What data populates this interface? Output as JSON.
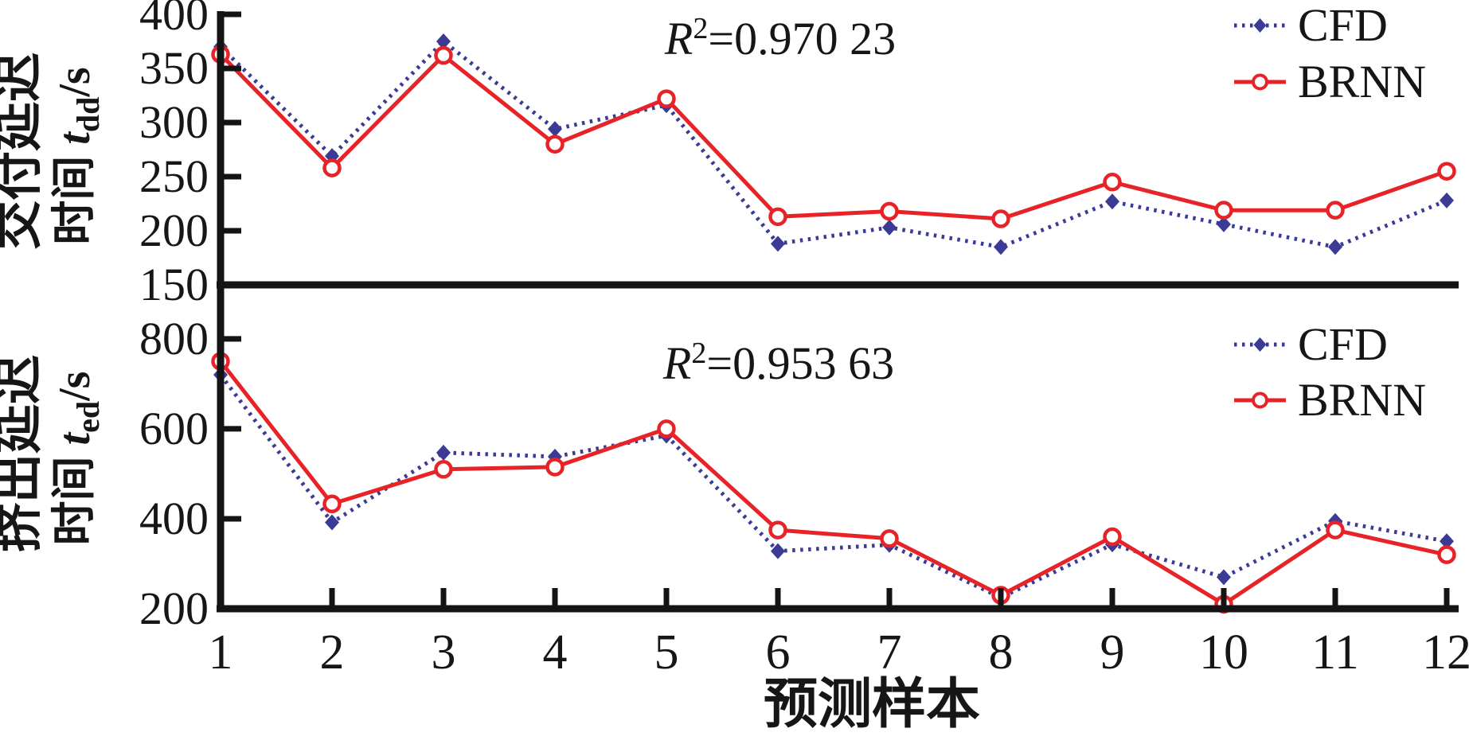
{
  "figure": {
    "xlabel": "预测样本",
    "x_categories": [
      "1",
      "2",
      "3",
      "4",
      "5",
      "6",
      "7",
      "8",
      "9",
      "10",
      "11",
      "12"
    ],
    "colors": {
      "cfd_blue": "#3B3B95",
      "brnn_red": "#E82328",
      "axis_black": "#141414"
    }
  },
  "chart_data": [
    {
      "type": "line",
      "panel": "top",
      "title": "",
      "annotation": {
        "var": "R",
        "sup": "2",
        "rest": "=0.970 23",
        "text": "R²=0.970 23"
      },
      "xlabel": "预测样本",
      "ylabel": "交付延迟时间 t_dd/s",
      "ylabel_lines": {
        "line1": "交付延迟",
        "line2_prefix": "时间 ",
        "var": "t",
        "sub": "dd",
        "unit": "/s"
      },
      "x": [
        1,
        2,
        3,
        4,
        5,
        6,
        7,
        8,
        9,
        10,
        11,
        12
      ],
      "ylim": [
        150,
        400
      ],
      "ylim_visual": [
        150,
        400
      ],
      "yticks": [
        400,
        350,
        300,
        250,
        200,
        150
      ],
      "grid": false,
      "legend_position": "top-right",
      "series": [
        {
          "name": "CFD",
          "color_key": "cfd_blue",
          "line_style": "dotted",
          "marker": "filled-diamond",
          "values": [
            370,
            269,
            375,
            294,
            316,
            188,
            203,
            185,
            227,
            206,
            185,
            228
          ]
        },
        {
          "name": "BRNN",
          "color_key": "brnn_red",
          "line_style": "solid",
          "marker": "open-circle",
          "values": [
            363,
            258,
            362,
            280,
            322,
            213,
            218,
            211,
            245,
            219,
            219,
            255
          ]
        }
      ]
    },
    {
      "type": "line",
      "panel": "bottom",
      "title": "",
      "annotation": {
        "var": "R",
        "sup": "2",
        "rest": "=0.953 63",
        "text": "R²=0.953 63"
      },
      "xlabel": "预测样本",
      "ylabel": "挤出延迟时间 t_ed/s",
      "ylabel_lines": {
        "line1": "挤出延迟",
        "line2_prefix": "时间 ",
        "var": "t",
        "sub": "ed",
        "unit": "/s"
      },
      "x": [
        1,
        2,
        3,
        4,
        5,
        6,
        7,
        8,
        9,
        10,
        11,
        12
      ],
      "ylim": [
        200,
        800
      ],
      "ylim_visual": [
        200,
        920
      ],
      "yticks": [
        800,
        600,
        400,
        200
      ],
      "grid": false,
      "legend_position": "top-right",
      "series": [
        {
          "name": "CFD",
          "color_key": "cfd_blue",
          "line_style": "dotted",
          "marker": "filled-diamond",
          "values": [
            720,
            392,
            547,
            538,
            585,
            328,
            342,
            225,
            343,
            270,
            395,
            350
          ]
        },
        {
          "name": "BRNN",
          "color_key": "brnn_red",
          "line_style": "solid",
          "marker": "open-circle",
          "values": [
            750,
            433,
            510,
            515,
            600,
            375,
            356,
            230,
            360,
            210,
            375,
            320
          ]
        }
      ]
    }
  ]
}
